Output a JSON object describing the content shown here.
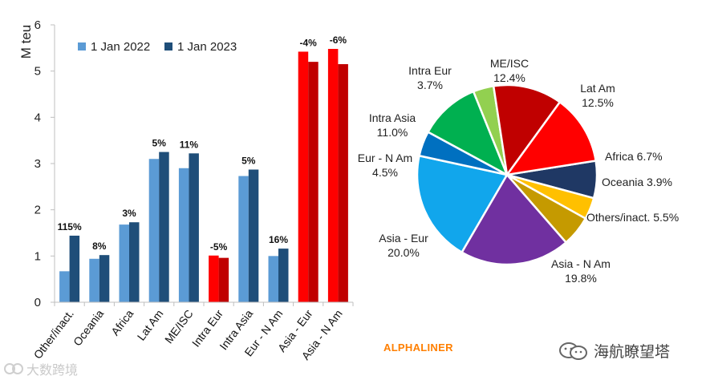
{
  "chart_data": [
    {
      "type": "bar",
      "ylabel": "M teu",
      "ylim": [
        0,
        6
      ],
      "yticks": [
        0,
        1,
        2,
        3,
        4,
        5,
        6
      ],
      "grid": false,
      "legend_position": "top-left",
      "categories": [
        "Other/inact.",
        "Oceania",
        "Africa",
        "Lat Am",
        "ME/ISC",
        "Intra Eur",
        "Intra Asia",
        "Eur - N Am",
        "Asia - Eur",
        "Asia - N Am"
      ],
      "series": [
        {
          "name": "1 Jan 2022",
          "color": "#5b9bd5",
          "values": [
            0.67,
            0.94,
            1.68,
            3.1,
            2.9,
            1.01,
            2.73,
            1.0,
            5.42,
            5.48
          ]
        },
        {
          "name": "1 Jan 2023",
          "color": "#1f4e79",
          "values": [
            1.44,
            1.02,
            1.73,
            3.25,
            3.22,
            0.96,
            2.87,
            1.16,
            5.2,
            5.15
          ]
        }
      ],
      "highlight_categories": [
        "Intra Eur",
        "Asia - Eur",
        "Asia - N Am"
      ],
      "highlight_colors": {
        "1 Jan 2022": "#ff0000",
        "1 Jan 2023": "#c00000"
      },
      "data_labels": [
        "115%",
        "8%",
        "3%",
        "5%",
        "11%",
        "-5%",
        "5%",
        "16%",
        "-4%",
        "-6%"
      ]
    },
    {
      "type": "pie",
      "start_angle_deg": -9,
      "slices": [
        {
          "label": "Africa",
          "text": "6.7%",
          "value": 6.7,
          "color": "#1f3864"
        },
        {
          "label": "Oceania",
          "text": "3.9%",
          "value": 3.9,
          "color": "#ffc000"
        },
        {
          "label": "Others/inact.",
          "text": "5.5%",
          "value": 5.5,
          "color": "#c59a00"
        },
        {
          "label": "Asia - N Am",
          "text": "19.8%",
          "value": 19.8,
          "color": "#7030a0"
        },
        {
          "label": "Asia - Eur",
          "text": "20.0%",
          "value": 20.0,
          "color": "#11a6ec"
        },
        {
          "label": "Eur - N Am",
          "text": "4.5%",
          "value": 4.5,
          "color": "#0070c0"
        },
        {
          "label": "Intra Asia",
          "text": "11.0%",
          "value": 11.0,
          "color": "#00b050"
        },
        {
          "label": "Intra Eur",
          "text": "3.7%",
          "value": 3.7,
          "color": "#92d050"
        },
        {
          "label": "ME/ISC",
          "text": "12.4%",
          "value": 12.4,
          "color": "#c00000"
        },
        {
          "label": "Lat Am",
          "text": "12.5%",
          "value": 12.5,
          "color": "#ff0000"
        }
      ]
    }
  ],
  "branding": {
    "source": "ALPHALINER",
    "account": "海航瞭望塔",
    "watermark": "大数跨境"
  }
}
